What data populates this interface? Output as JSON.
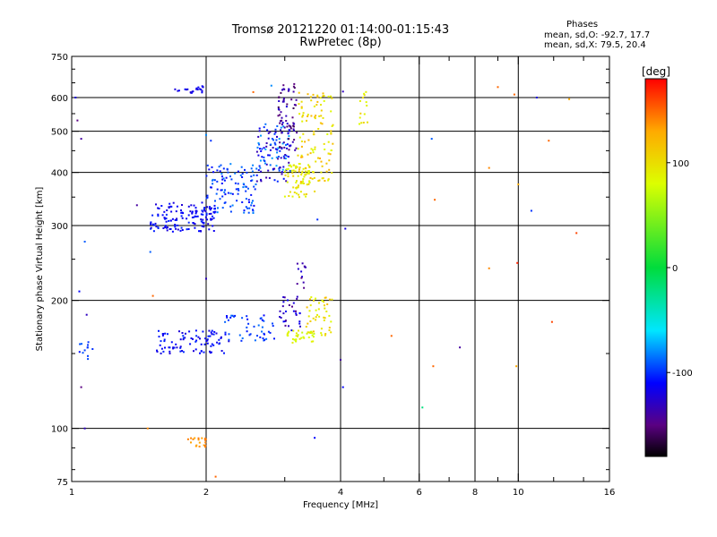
{
  "chart_data": {
    "type": "scatter",
    "title": "Tromsø 20121220 01:14:00-01:15:43",
    "subtitle": "RwPretec (8p)",
    "xlabel": "Frequency [MHz]",
    "ylabel": "Stationary phase Virtual Height [km]",
    "x_scale": "log",
    "y_scale": "log",
    "xlim": [
      1,
      16
    ],
    "ylim": [
      75,
      750
    ],
    "x_ticks": [
      1,
      2,
      4,
      6,
      8,
      10,
      16
    ],
    "x_tick_labels": [
      "1",
      "2",
      "4",
      "6",
      "8",
      "10",
      "16"
    ],
    "x_minor_ticks": [
      3,
      5,
      7,
      9,
      12,
      14
    ],
    "y_ticks": [
      75,
      100,
      200,
      300,
      400,
      500,
      600,
      750
    ],
    "y_tick_labels": [
      "75",
      "100",
      "200",
      "300",
      "400",
      "500",
      "600",
      "750"
    ],
    "x_grid": [
      2,
      4,
      6,
      8,
      10
    ],
    "y_grid": [
      100,
      200,
      300,
      400,
      500,
      600
    ],
    "colorbar": {
      "label": "[deg]",
      "range": [
        -180,
        180
      ],
      "ticks": [
        100,
        0,
        -100
      ],
      "tick_labels": [
        "100",
        "0",
        "-100"
      ]
    },
    "stats": {
      "heading": "Phases",
      "line_o": "mean, sd,O: -92.7, 17.7",
      "line_x": "mean, sd,X:  79.5, 20.4"
    },
    "clusters": [
      {
        "f": [
          1.5,
          2.1
        ],
        "h": [
          290,
          340
        ],
        "phase": [
          -125,
          -100
        ],
        "n": 140
      },
      {
        "f": [
          2.0,
          2.6
        ],
        "h": [
          320,
          420
        ],
        "phase": [
          -115,
          -80
        ],
        "n": 110
      },
      {
        "f": [
          2.6,
          3.1
        ],
        "h": [
          380,
          520
        ],
        "phase": [
          -140,
          -70
        ],
        "n": 110
      },
      {
        "f": [
          2.9,
          3.2
        ],
        "h": [
          450,
          650
        ],
        "phase": [
          -160,
          -120
        ],
        "n": 70
      },
      {
        "f": [
          3.0,
          3.5
        ],
        "h": [
          350,
          420
        ],
        "phase": [
          75,
          110
        ],
        "n": 70
      },
      {
        "f": [
          3.2,
          3.85
        ],
        "h": [
          380,
          620
        ],
        "phase": [
          80,
          130
        ],
        "n": 110
      },
      {
        "f": [
          1.7,
          2.0
        ],
        "h": [
          615,
          640
        ],
        "phase": [
          -125,
          -110
        ],
        "n": 22
      },
      {
        "f": [
          4.4,
          4.6
        ],
        "h": [
          500,
          620
        ],
        "phase": [
          80,
          110
        ],
        "n": 14
      },
      {
        "f": [
          1.55,
          2.25
        ],
        "h": [
          150,
          170
        ],
        "phase": [
          -125,
          -100
        ],
        "n": 90
      },
      {
        "f": [
          2.2,
          2.85
        ],
        "h": [
          160,
          185
        ],
        "phase": [
          -110,
          -85
        ],
        "n": 45
      },
      {
        "f": [
          2.9,
          3.25
        ],
        "h": [
          170,
          205
        ],
        "phase": [
          -150,
          -110
        ],
        "n": 30
      },
      {
        "f": [
          3.15,
          3.35
        ],
        "h": [
          210,
          245
        ],
        "phase": [
          -150,
          -120
        ],
        "n": 12
      },
      {
        "f": [
          3.0,
          3.5
        ],
        "h": [
          158,
          170
        ],
        "phase": [
          70,
          100
        ],
        "n": 35
      },
      {
        "f": [
          3.35,
          3.85
        ],
        "h": [
          165,
          205
        ],
        "phase": [
          80,
          120
        ],
        "n": 45
      },
      {
        "f": [
          1.8,
          2.0
        ],
        "h": [
          90,
          95
        ],
        "phase": [
          130,
          150
        ],
        "n": 20
      },
      {
        "f": [
          1.03,
          1.12
        ],
        "h": [
          145,
          160
        ],
        "phase": [
          -110,
          -90
        ],
        "n": 12
      }
    ],
    "points": [
      {
        "x": 1.02,
        "y": 600,
        "phase": -120
      },
      {
        "x": 1.03,
        "y": 530,
        "phase": -150
      },
      {
        "x": 1.05,
        "y": 480,
        "phase": -140
      },
      {
        "x": 1.07,
        "y": 275,
        "phase": -90
      },
      {
        "x": 1.04,
        "y": 210,
        "phase": -110
      },
      {
        "x": 1.08,
        "y": 185,
        "phase": -130
      },
      {
        "x": 1.05,
        "y": 125,
        "phase": -150
      },
      {
        "x": 1.07,
        "y": 100,
        "phase": -130
      },
      {
        "x": 1.4,
        "y": 335,
        "phase": -140
      },
      {
        "x": 1.5,
        "y": 260,
        "phase": -90
      },
      {
        "x": 1.52,
        "y": 205,
        "phase": 150
      },
      {
        "x": 1.48,
        "y": 100,
        "phase": 140
      },
      {
        "x": 2.0,
        "y": 490,
        "phase": -80
      },
      {
        "x": 2.05,
        "y": 475,
        "phase": -100
      },
      {
        "x": 2.0,
        "y": 225,
        "phase": -130
      },
      {
        "x": 2.1,
        "y": 77,
        "phase": 150
      },
      {
        "x": 2.55,
        "y": 618,
        "phase": 150
      },
      {
        "x": 2.8,
        "y": 640,
        "phase": -80
      },
      {
        "x": 3.55,
        "y": 310,
        "phase": -100
      },
      {
        "x": 3.5,
        "y": 95,
        "phase": -110
      },
      {
        "x": 4.05,
        "y": 620,
        "phase": -130
      },
      {
        "x": 4.1,
        "y": 295,
        "phase": -120
      },
      {
        "x": 4.0,
        "y": 145,
        "phase": -140
      },
      {
        "x": 4.05,
        "y": 125,
        "phase": -110
      },
      {
        "x": 5.2,
        "y": 165,
        "phase": 150
      },
      {
        "x": 6.1,
        "y": 112,
        "phase": -20
      },
      {
        "x": 6.4,
        "y": 480,
        "phase": -90
      },
      {
        "x": 6.5,
        "y": 345,
        "phase": 150
      },
      {
        "x": 6.45,
        "y": 140,
        "phase": 150
      },
      {
        "x": 7.4,
        "y": 155,
        "phase": -140
      },
      {
        "x": 8.6,
        "y": 410,
        "phase": 140
      },
      {
        "x": 8.6,
        "y": 238,
        "phase": 140
      },
      {
        "x": 9.0,
        "y": 635,
        "phase": 150
      },
      {
        "x": 9.8,
        "y": 610,
        "phase": 150
      },
      {
        "x": 10.0,
        "y": 375,
        "phase": 130
      },
      {
        "x": 9.95,
        "y": 245,
        "phase": 170
      },
      {
        "x": 9.9,
        "y": 140,
        "phase": 130
      },
      {
        "x": 10.7,
        "y": 325,
        "phase": -100
      },
      {
        "x": 11.0,
        "y": 600,
        "phase": -120
      },
      {
        "x": 11.7,
        "y": 475,
        "phase": 150
      },
      {
        "x": 11.9,
        "y": 178,
        "phase": 160
      },
      {
        "x": 13.0,
        "y": 595,
        "phase": 130
      },
      {
        "x": 13.5,
        "y": 288,
        "phase": 160
      }
    ]
  }
}
